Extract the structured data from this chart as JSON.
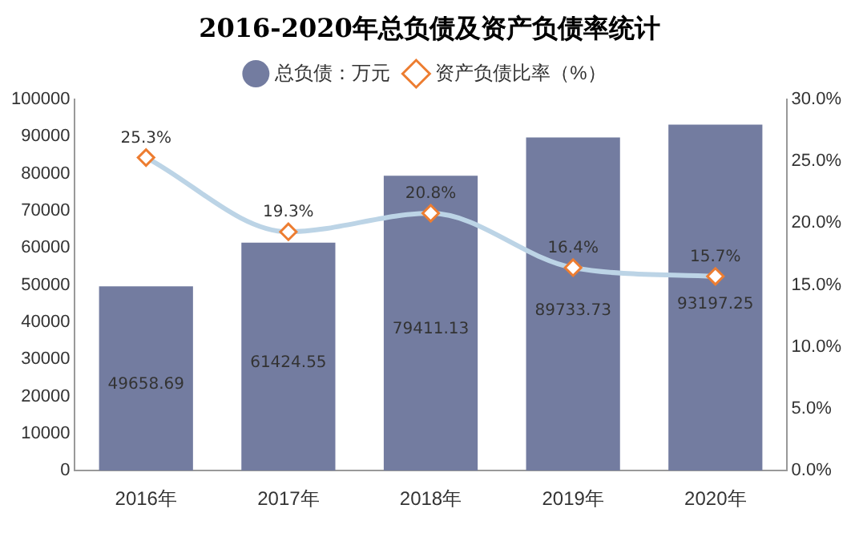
{
  "chart_data": {
    "type": "bar",
    "title": "2016-2020年总负债及资产负债率统计",
    "categories": [
      "2016年",
      "2017年",
      "2018年",
      "2019年",
      "2020年"
    ],
    "series": [
      {
        "name": "总负债：万元",
        "color": "#737ca0",
        "values": [
          49658.69,
          61424.55,
          79411.13,
          89733.73,
          93197.25
        ],
        "value_labels": [
          "49658.69",
          "61424.55",
          "79411.13",
          "89733.73",
          "93197.25"
        ]
      },
      {
        "name": "资产负债比率（%）",
        "type": "line",
        "axis": "y2",
        "color": "#bcd4e6",
        "marker": "diamond",
        "values": [
          25.3,
          19.3,
          20.8,
          16.4,
          15.7
        ],
        "value_labels": [
          "25.3%",
          "19.3%",
          "20.8%",
          "16.4%",
          "15.7%"
        ]
      }
    ],
    "ylim": [
      0,
      100000
    ],
    "yticks": [
      0,
      10000,
      20000,
      30000,
      40000,
      50000,
      60000,
      70000,
      80000,
      90000,
      100000
    ],
    "y2lim": [
      0,
      30
    ],
    "y2ticks": [
      {
        "value": 0,
        "label": "0.0%"
      },
      {
        "value": 5,
        "label": "5.0%"
      },
      {
        "value": 10,
        "label": "10.0%"
      },
      {
        "value": 15,
        "label": "15.0%"
      },
      {
        "value": 20,
        "label": "20.0%"
      },
      {
        "value": 25,
        "label": "25.0%"
      },
      {
        "value": 30,
        "label": "30.0%"
      }
    ],
    "legend": "top"
  }
}
